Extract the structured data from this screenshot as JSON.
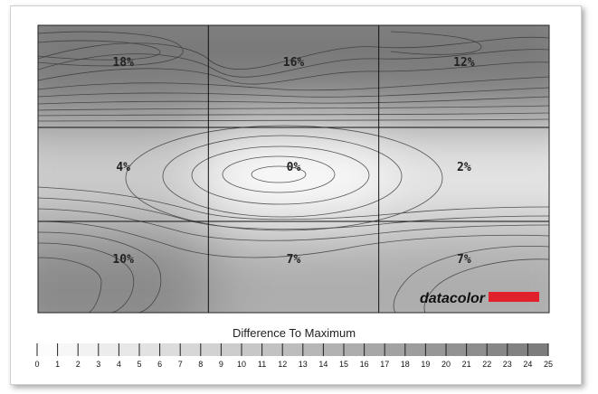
{
  "chart_data": {
    "type": "heatmap",
    "grid": {
      "rows": 3,
      "cols": 3
    },
    "cells": [
      [
        "18%",
        "16%",
        "12%"
      ],
      [
        "4%",
        "0%",
        "2%"
      ],
      [
        "10%",
        "7%",
        "7%"
      ]
    ],
    "values": [
      [
        18,
        16,
        12
      ],
      [
        4,
        0,
        2
      ],
      [
        10,
        7,
        7
      ]
    ],
    "legend": {
      "title": "Difference To Maximum",
      "min": 0,
      "max": 25,
      "ticks": [
        "0",
        "1",
        "2",
        "3",
        "4",
        "5",
        "6",
        "7",
        "8",
        "9",
        "10",
        "11",
        "12",
        "13",
        "14",
        "15",
        "16",
        "17",
        "18",
        "19",
        "20",
        "21",
        "22",
        "23",
        "24",
        "25"
      ]
    },
    "colors": {
      "low": "#ffffff",
      "high": "#7a7a7a",
      "contour": "#3a3a3a",
      "brand": "#e0202a"
    },
    "brand_logo": "datacolor"
  }
}
